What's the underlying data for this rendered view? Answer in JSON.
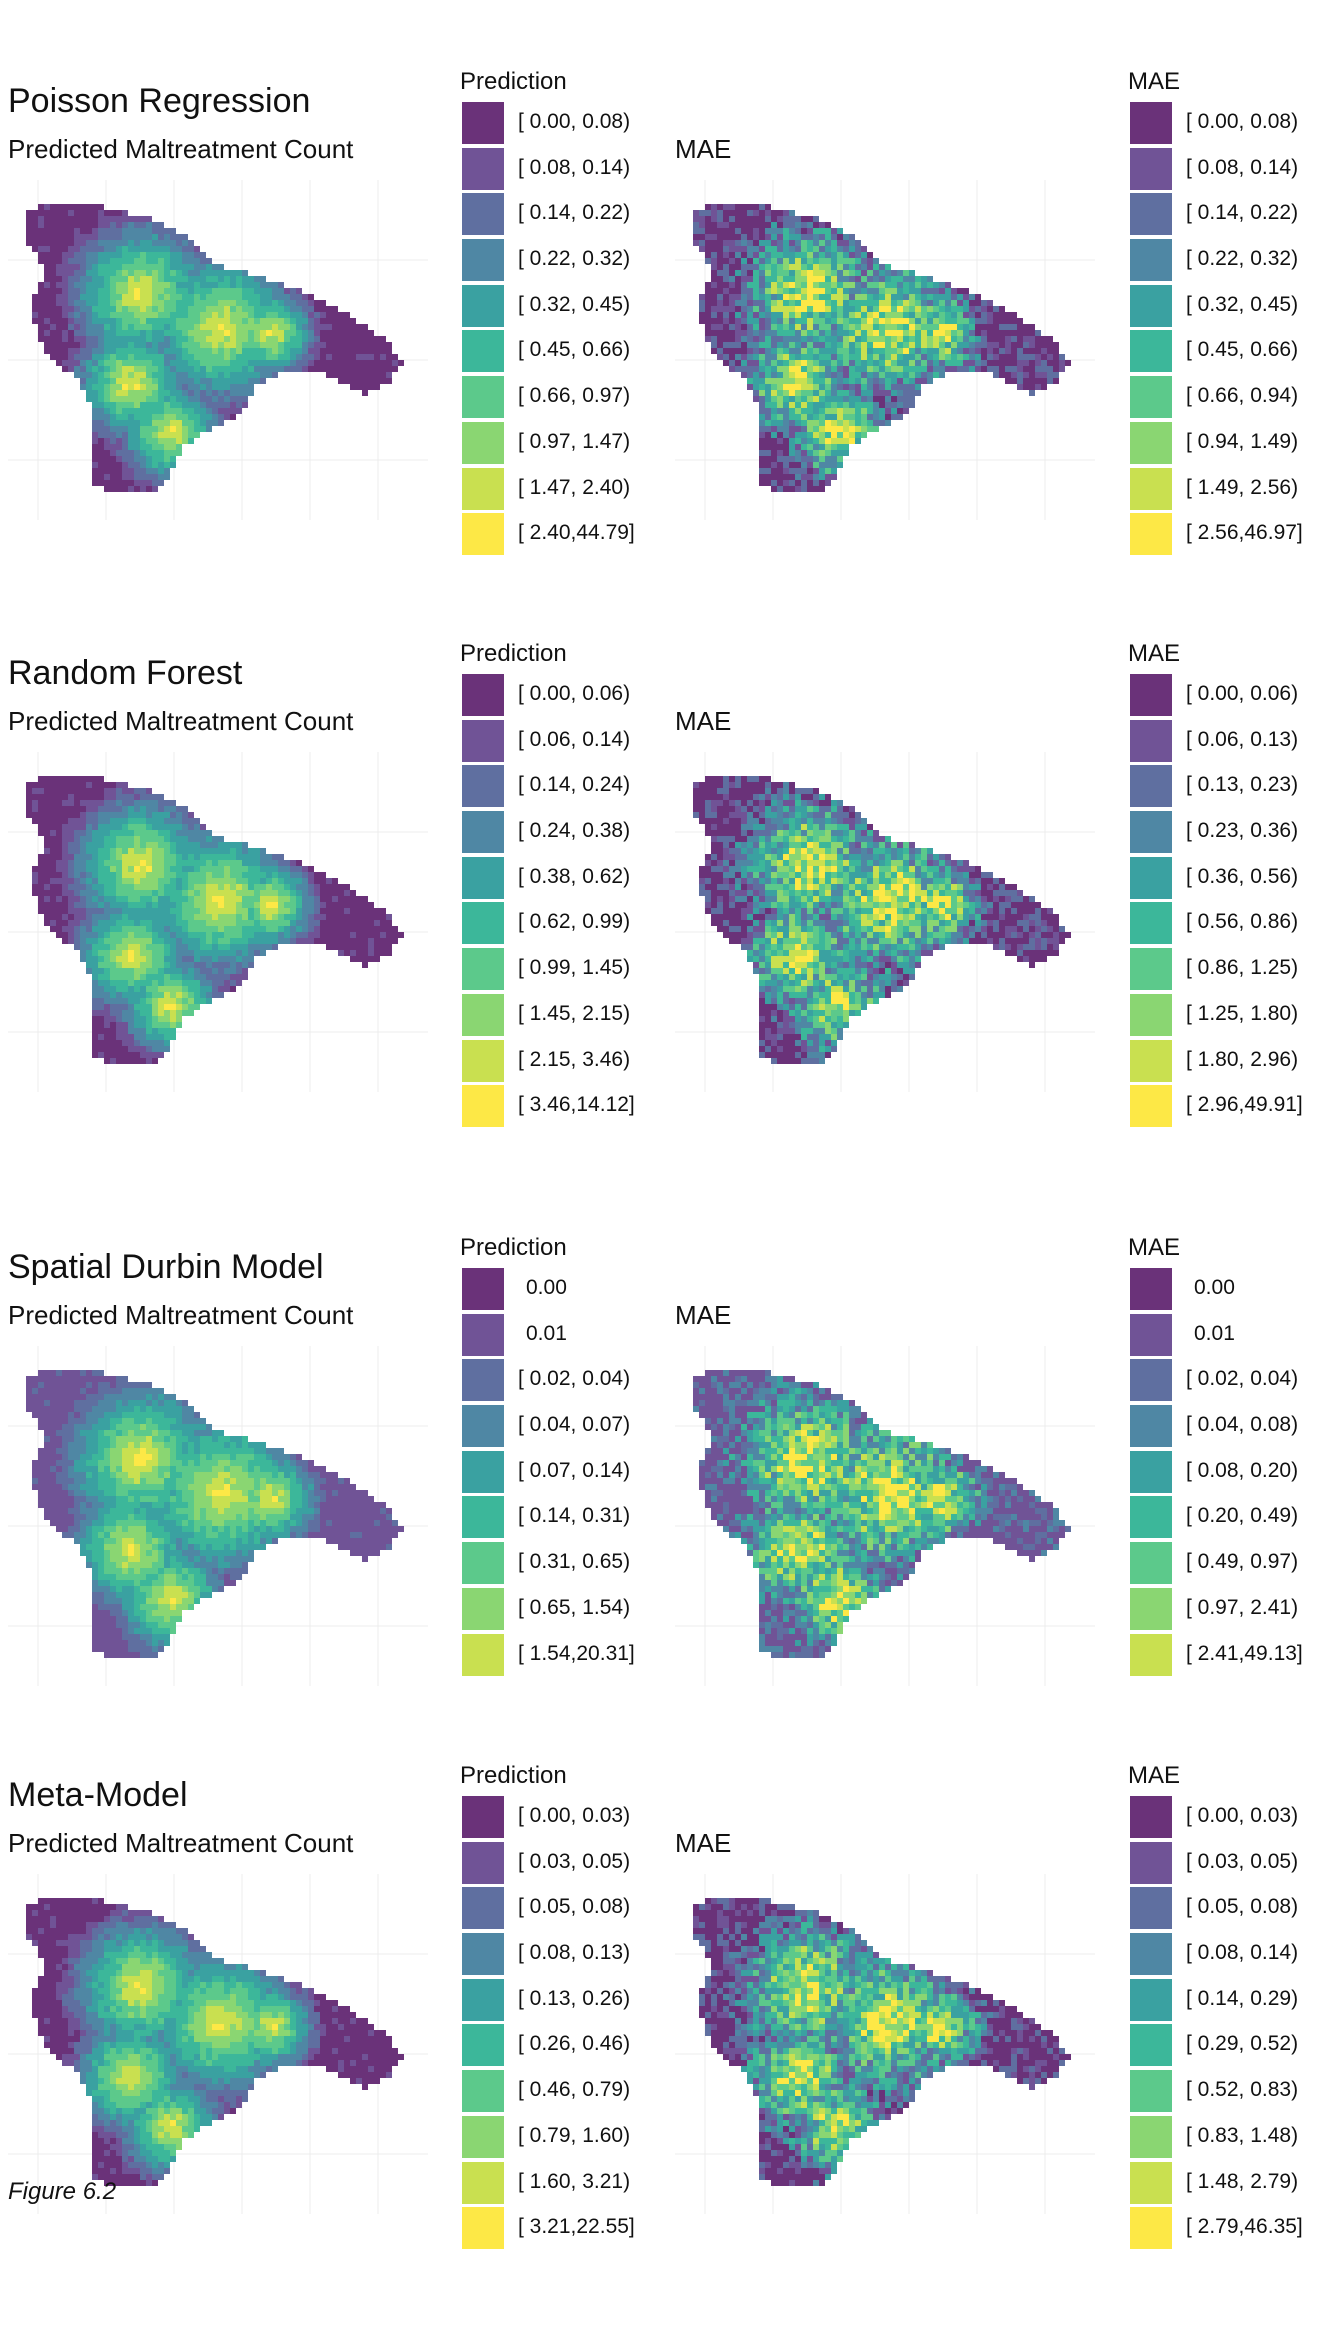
{
  "figure_caption": "Figure 6.2",
  "palette": [
    "#6a3279",
    "#705396",
    "#5f6fa0",
    "#4f87a4",
    "#3aa1a1",
    "#3cb79a",
    "#5cc98b",
    "#8ad672",
    "#c9e050",
    "#fde846"
  ],
  "chart_data": [
    {
      "type": "heatmap",
      "title": "Poisson Regression",
      "subtitle": "Predicted Maltreatment Count",
      "mae_title": "MAE",
      "prediction_legend": {
        "title": "Prediction",
        "labels": [
          "[ 0.00, 0.08)",
          "[ 0.08, 0.14)",
          "[ 0.14, 0.22)",
          "[ 0.22, 0.32)",
          "[ 0.32, 0.45)",
          "[ 0.45, 0.66)",
          "[ 0.66, 0.97)",
          "[ 0.97, 1.47)",
          "[ 1.47, 2.40)",
          "[ 2.40,44.79]"
        ]
      },
      "mae_legend": {
        "title": "MAE",
        "labels": [
          "[ 0.00, 0.08)",
          "[ 0.08, 0.14)",
          "[ 0.14, 0.22)",
          "[ 0.22, 0.32)",
          "[ 0.32, 0.45)",
          "[ 0.45, 0.66)",
          "[ 0.66, 0.94)",
          "[ 0.94, 1.49)",
          "[ 1.49, 2.56)",
          "[ 2.56,46.97]"
        ]
      }
    },
    {
      "type": "heatmap",
      "title": "Random Forest",
      "subtitle": "Predicted Maltreatment Count",
      "mae_title": "MAE",
      "prediction_legend": {
        "title": "Prediction",
        "labels": [
          "[ 0.00, 0.06)",
          "[ 0.06, 0.14)",
          "[ 0.14, 0.24)",
          "[ 0.24, 0.38)",
          "[ 0.38, 0.62)",
          "[ 0.62, 0.99)",
          "[ 0.99, 1.45)",
          "[ 1.45, 2.15)",
          "[ 2.15, 3.46)",
          "[ 3.46,14.12]"
        ]
      },
      "mae_legend": {
        "title": "MAE",
        "labels": [
          "[ 0.00, 0.06)",
          "[ 0.06, 0.13)",
          "[ 0.13, 0.23)",
          "[ 0.23, 0.36)",
          "[ 0.36, 0.56)",
          "[ 0.56, 0.86)",
          "[ 0.86, 1.25)",
          "[ 1.25, 1.80)",
          "[ 1.80, 2.96)",
          "[ 2.96,49.91]"
        ]
      }
    },
    {
      "type": "heatmap",
      "title": "Spatial Durbin Model",
      "subtitle": "Predicted Maltreatment Count",
      "mae_title": "MAE",
      "prediction_legend": {
        "title": "Prediction",
        "labels": [
          "0.00",
          "0.01",
          "[ 0.02, 0.04)",
          "[ 0.04, 0.07)",
          "[ 0.07, 0.14)",
          "[ 0.14, 0.31)",
          "[ 0.31, 0.65)",
          "[ 0.65, 1.54)",
          "[ 1.54,20.31]"
        ]
      },
      "mae_legend": {
        "title": "MAE",
        "labels": [
          "0.00",
          "0.01",
          "[ 0.02, 0.04)",
          "[ 0.04, 0.08)",
          "[ 0.08, 0.20)",
          "[ 0.20, 0.49)",
          "[ 0.49, 0.97)",
          "[ 0.97, 2.41)",
          "[ 2.41,49.13]"
        ]
      }
    },
    {
      "type": "heatmap",
      "title": "Meta-Model",
      "subtitle": "Predicted Maltreatment Count",
      "mae_title": "MAE",
      "prediction_legend": {
        "title": "Prediction",
        "labels": [
          "[ 0.00, 0.03)",
          "[ 0.03, 0.05)",
          "[ 0.05, 0.08)",
          "[ 0.08, 0.13)",
          "[ 0.13, 0.26)",
          "[ 0.26, 0.46)",
          "[ 0.46, 0.79)",
          "[ 0.79, 1.60)",
          "[ 1.60, 3.21)",
          "[ 3.21,22.55]"
        ]
      },
      "mae_legend": {
        "title": "MAE",
        "labels": [
          "[ 0.00, 0.03)",
          "[ 0.03, 0.05)",
          "[ 0.05, 0.08)",
          "[ 0.08, 0.14)",
          "[ 0.14, 0.29)",
          "[ 0.29, 0.52)",
          "[ 0.52, 0.83)",
          "[ 0.83, 1.48)",
          "[ 1.48, 2.79)",
          "[ 2.79,46.35]"
        ]
      }
    }
  ]
}
